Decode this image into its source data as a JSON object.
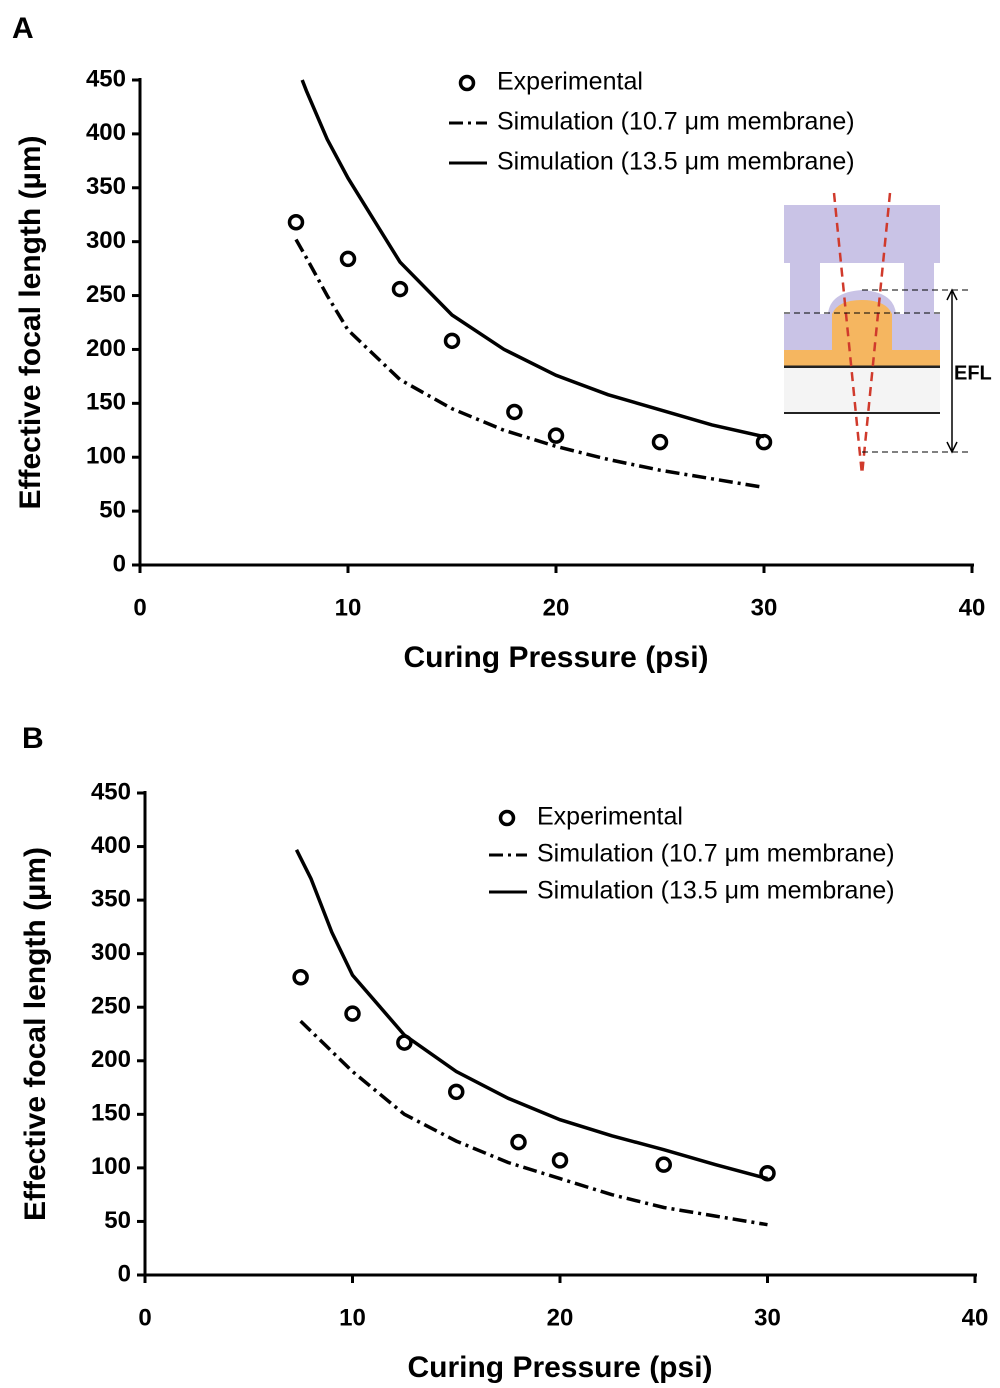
{
  "chart_data": [
    {
      "type": "line",
      "panel": "A",
      "x_label": "Curing Pressure (psi)",
      "y_label": "Effective focal length (µm)",
      "xlim": [
        0,
        40
      ],
      "xticks": [
        0,
        10,
        20,
        30,
        40
      ],
      "ylim": [
        0,
        450
      ],
      "yticks": [
        0,
        50,
        100,
        150,
        200,
        250,
        300,
        350,
        400,
        450
      ],
      "grid": false,
      "legend": "upper right",
      "annotations": [
        "EFL"
      ],
      "series": [
        {
          "name": "Experimental",
          "style": "markers",
          "color": "#000000",
          "x": [
            7.5,
            10,
            12.5,
            15,
            18,
            20,
            25,
            30
          ],
          "values": [
            318,
            284,
            256,
            208,
            142,
            120,
            114,
            114
          ]
        },
        {
          "name": "Simulation (10.7 μm membrane)",
          "style": "dashdot",
          "color": "#000000",
          "x": [
            7.5,
            8,
            9,
            10,
            12.5,
            15,
            17.5,
            20,
            22.5,
            25,
            27.5,
            30
          ],
          "values": [
            302,
            285,
            250,
            218,
            172,
            145,
            125,
            110,
            98,
            88,
            80,
            72
          ]
        },
        {
          "name": "Simulation (13.5 μm membrane)",
          "style": "solid",
          "color": "#000000",
          "x": [
            7.8,
            8,
            9,
            10,
            12.5,
            15,
            17.5,
            20,
            22.5,
            25,
            27.5,
            30
          ],
          "values": [
            450,
            440,
            395,
            359,
            281,
            232,
            200,
            176,
            158,
            144,
            130,
            119
          ]
        }
      ]
    },
    {
      "type": "line",
      "panel": "B",
      "x_label": "Curing Pressure (psi)",
      "y_label": "Effective focal length (µm)",
      "xlim": [
        0,
        40
      ],
      "xticks": [
        0,
        10,
        20,
        30,
        40
      ],
      "ylim": [
        0,
        450
      ],
      "yticks": [
        0,
        50,
        100,
        150,
        200,
        250,
        300,
        350,
        400,
        450
      ],
      "grid": false,
      "legend": "upper right",
      "series": [
        {
          "name": "Experimental",
          "style": "markers",
          "color": "#000000",
          "x": [
            7.5,
            10,
            12.5,
            15,
            18,
            20,
            25,
            30
          ],
          "values": [
            278,
            244,
            217,
            171,
            124,
            107,
            103,
            95
          ]
        },
        {
          "name": "Simulation (10.7 μm membrane)",
          "style": "dashdot",
          "color": "#000000",
          "x": [
            7.5,
            10,
            12.5,
            15,
            17.5,
            20,
            22.5,
            25,
            27.5,
            30
          ],
          "values": [
            237,
            190,
            150,
            125,
            105,
            90,
            75,
            63,
            55,
            47
          ]
        },
        {
          "name": "Simulation (13.5 μm membrane)",
          "style": "solid",
          "color": "#000000",
          "x": [
            7.3,
            8,
            9,
            10,
            12.5,
            15,
            17.5,
            20,
            22.5,
            25,
            27.5,
            30
          ],
          "values": [
            397,
            370,
            320,
            280,
            224,
            190,
            165,
            145,
            130,
            117,
            103,
            90
          ]
        }
      ]
    }
  ]
}
